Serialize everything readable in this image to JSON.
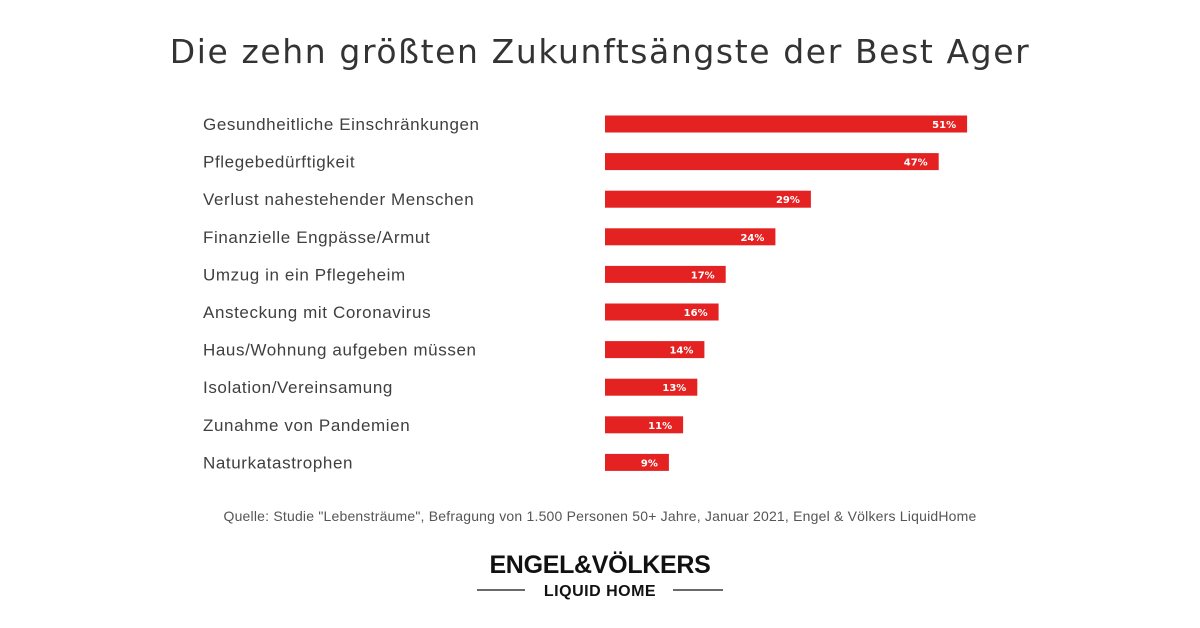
{
  "title": "Die zehn größten Zukunftsängste der Best Ager",
  "source": "Quelle: Studie \"Lebensträume\", Befragung von 1.500 Personen 50+ Jahre, Januar 2021, Engel & Völkers LiquidHome",
  "logo": {
    "brand": "ENGEL&VÖLKERS",
    "sub": "LIQUID HOME"
  },
  "colors": {
    "bar": "#e32221",
    "bar_text": "#ffffff"
  },
  "chart_data": {
    "type": "bar",
    "orientation": "horizontal",
    "categories": [
      "Gesundheitliche Einschränkungen",
      "Pflegebedürftigkeit",
      "Verlust nahestehender Menschen",
      "Finanzielle Engpässe/Armut",
      "Umzug in ein Pflegeheim",
      "Ansteckung mit Coronavirus",
      "Haus/Wohnung aufgeben müssen",
      "Isolation/Vereinsamung",
      "Zunahme von Pandemien",
      "Naturkatastrophen"
    ],
    "values": [
      51,
      47,
      29,
      24,
      17,
      16,
      14,
      13,
      11,
      9
    ],
    "data_labels": [
      "51%",
      "47%",
      "29%",
      "24%",
      "17%",
      "16%",
      "14%",
      "13%",
      "11%",
      "9%"
    ],
    "unit": "%",
    "grid": false,
    "legend": "none"
  }
}
